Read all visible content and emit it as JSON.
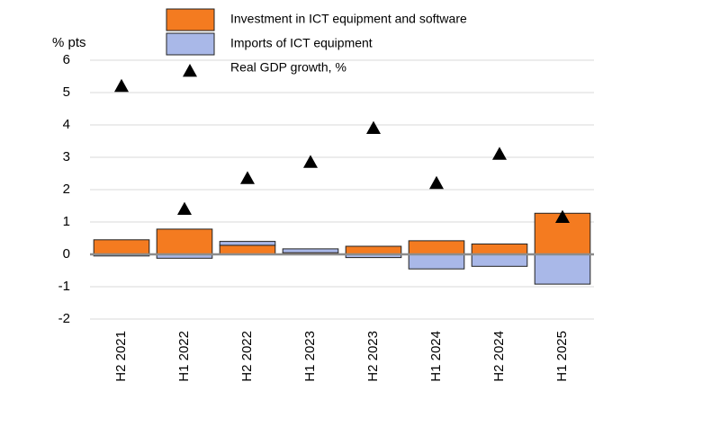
{
  "chart_data": {
    "type": "bar",
    "y_label": "% pts",
    "categories": [
      "H2 2021",
      "H1 2022",
      "H2 2022",
      "H1 2023",
      "H2 2023",
      "H1 2024",
      "H2 2024",
      "H1 2025"
    ],
    "series": [
      {
        "name": "Investment in ICT equipment and software",
        "color": "#f47b20",
        "values": [
          0.45,
          0.78,
          0.28,
          0.05,
          0.25,
          0.42,
          0.32,
          1.27
        ]
      },
      {
        "name": "Imports of ICT equipment",
        "color": "#a9b8e8",
        "values": [
          -0.05,
          -0.12,
          0.12,
          0.12,
          -0.1,
          -0.45,
          -0.37,
          -0.92
        ]
      },
      {
        "name": "Real GDP growth, %",
        "color": "#000000",
        "mark": "triangle",
        "values": [
          5.2,
          1.4,
          2.35,
          2.85,
          3.9,
          2.2,
          3.1,
          1.15
        ]
      }
    ],
    "ylim": [
      -2,
      6
    ],
    "yticks": [
      -2,
      -1,
      0,
      1,
      2,
      3,
      4,
      5,
      6
    ],
    "grid": true
  }
}
